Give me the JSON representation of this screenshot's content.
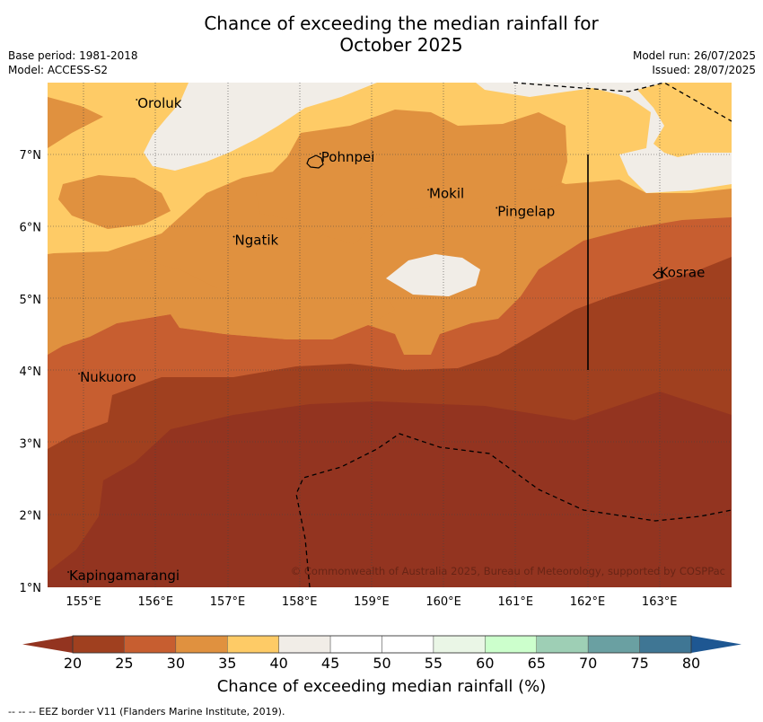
{
  "header": {
    "title_line1": "Chance of exceeding the median rainfall for",
    "title_line2": "October 2025",
    "base_period": "Base period: 1981-2018",
    "model": "Model: ACCESS-S2",
    "model_run": "Model run: 26/07/2025",
    "issued": "Issued: 28/07/2025"
  },
  "map": {
    "lat_labels": [
      "7°N",
      "6°N",
      "5°N",
      "4°N",
      "3°N",
      "2°N",
      "1°N"
    ],
    "lon_labels": [
      "155°E",
      "156°E",
      "157°E",
      "158°E",
      "159°E",
      "160°E",
      "161°E",
      "162°E",
      "163°E"
    ],
    "places": [
      {
        "name": "Oroluk",
        "lon": 155.75,
        "lat": 7.65
      },
      {
        "name": "Pohnpei",
        "lon": 158.3,
        "lat": 6.9
      },
      {
        "name": "Mokil",
        "lon": 159.8,
        "lat": 6.4
      },
      {
        "name": "Pingelap",
        "lon": 160.75,
        "lat": 6.15
      },
      {
        "name": "Ngatik",
        "lon": 157.1,
        "lat": 5.75
      },
      {
        "name": "Kosrae",
        "lon": 163.0,
        "lat": 5.3
      },
      {
        "name": "Nukuoro",
        "lon": 154.95,
        "lat": 3.85
      },
      {
        "name": "Kapingamarangi",
        "lon": 154.8,
        "lat": 1.1
      }
    ],
    "copyright": "© Commonwealth of Australia 2025, Bureau of Meteorology, supported by COSPPac"
  },
  "colorbar": {
    "ticks": [
      "20",
      "25",
      "30",
      "35",
      "40",
      "45",
      "50",
      "55",
      "60",
      "65",
      "70",
      "75",
      "80"
    ],
    "colors": [
      "#a0401f",
      "#c75e30",
      "#e0913f",
      "#fecb66",
      "#f1ede7",
      "#ffffff",
      "#ffffff",
      "#eaf6e6",
      "#ccffcc",
      "#9ecfb5",
      "#6aa0a2",
      "#3f7694"
    ],
    "under_color": "#933420",
    "over_color": "#1e5792",
    "title": "Chance of exceeding median rainfall (%)"
  },
  "footer": "-- -- -- EEZ border V11 (Flanders Marine Institute, 2019)."
}
